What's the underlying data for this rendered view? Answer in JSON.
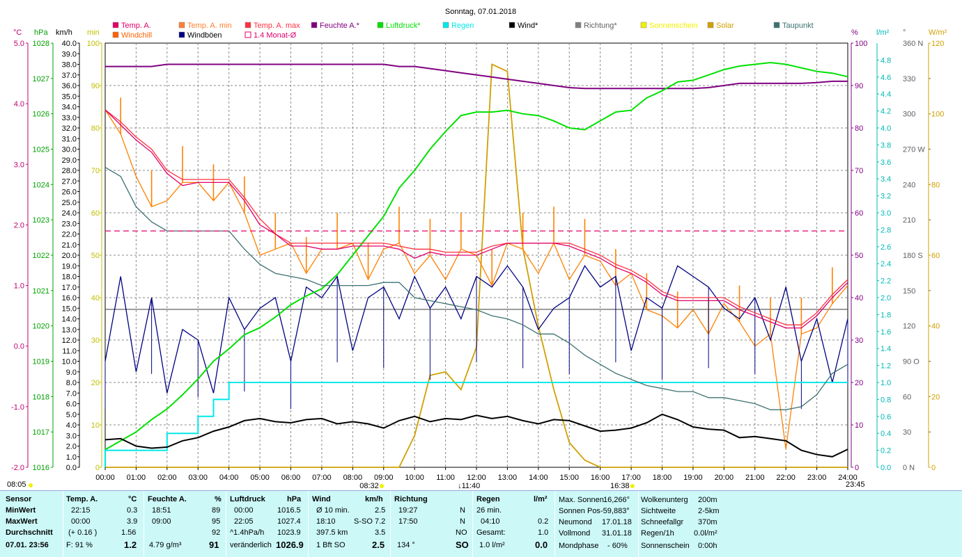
{
  "title": "Sonntag, 07.01.2018",
  "axis_units": {
    "temp": "°C",
    "hpa": "hPa",
    "kmh": "km/h",
    "min": "min",
    "pct": "%",
    "lqm": "l/m²",
    "deg": "°",
    "wqm": "W/m²"
  },
  "legend": [
    {
      "label": "Temp. A.",
      "color": "#e0006a",
      "kind": "box"
    },
    {
      "label": "Temp. A. min",
      "color": "#ff8030",
      "kind": "box"
    },
    {
      "label": "Temp. A. max",
      "color": "#ff3040",
      "kind": "box"
    },
    {
      "label": "Feuchte A.*",
      "color": "#800080",
      "kind": "box"
    },
    {
      "label": "Luftdruck*",
      "color": "#00e000",
      "kind": "box"
    },
    {
      "label": "Regen",
      "color": "#00e8e8",
      "kind": "box"
    },
    {
      "label": "Wind*",
      "color": "#000000",
      "kind": "box"
    },
    {
      "label": "Richtung*",
      "color": "#808080",
      "kind": "box"
    },
    {
      "label": "Sonnenschein",
      "color": "#f0f000",
      "kind": "box"
    },
    {
      "label": "Solar",
      "color": "#d0a000",
      "kind": "box"
    },
    {
      "label": "Taupunkt",
      "color": "#3c7070",
      "kind": "box"
    },
    {
      "label": "Windchill",
      "color": "#ff6000",
      "kind": "box"
    },
    {
      "label": "Windböen",
      "color": "#000080",
      "kind": "box"
    },
    {
      "label": "1.4 Monat-Ø",
      "color": "#e0006a",
      "kind": "open"
    }
  ],
  "chart_data": {
    "type": "line",
    "title": "Sonntag, 07.01.2018",
    "x_hours": [
      0,
      0.5,
      1,
      1.5,
      2,
      2.5,
      3,
      3.5,
      4,
      4.5,
      5,
      5.5,
      6,
      6.5,
      7,
      7.5,
      8,
      8.5,
      9,
      9.5,
      10,
      10.5,
      11,
      11.5,
      12,
      12.5,
      13,
      13.5,
      14,
      14.5,
      15,
      15.5,
      16,
      16.5,
      17,
      17.5,
      18,
      18.5,
      19,
      19.5,
      20,
      20.5,
      21,
      21.5,
      22,
      22.5,
      23,
      23.5,
      24
    ],
    "x_ticks": [
      "00:00",
      "01:00",
      "02:00",
      "03:00",
      "04:00",
      "05:00",
      "06:00",
      "07:00",
      "08:00",
      "09:00",
      "10:00",
      "11:00",
      "12:00",
      "13:00",
      "14:00",
      "15:00",
      "16:00",
      "17:00",
      "18:00",
      "19:00",
      "20:00",
      "21:00",
      "22:00",
      "23:00",
      "24:00"
    ],
    "axes": {
      "temp": {
        "ticks": [
          "5.0",
          "4.0",
          "3.0",
          "2.0",
          "1.0",
          "0.0",
          "-1.0",
          "-2.0"
        ],
        "range": [
          -2,
          5
        ]
      },
      "pressure": {
        "ticks": [
          "1028",
          "1027",
          "1026",
          "1025",
          "1024",
          "1023",
          "1022",
          "1021",
          "1020",
          "1019",
          "1018",
          "1017",
          "1016"
        ],
        "range": [
          1016,
          1028
        ]
      },
      "wind_kmh": {
        "ticks": [
          "40.0",
          "39.0",
          "38.0",
          "37.0",
          "36.0",
          "35.0",
          "34.0",
          "33.0",
          "32.0",
          "31.0",
          "30.0",
          "29.0",
          "28.0",
          "27.0",
          "26.0",
          "25.0",
          "24.0",
          "23.0",
          "22.0",
          "21.0",
          "20.0",
          "19.0",
          "18.0",
          "17.0",
          "16.0",
          "15.0",
          "14.0",
          "13.0",
          "12.0",
          "11.0",
          "10.0",
          "9.0",
          "8.0",
          "7.0",
          "6.0",
          "5.0",
          "4.0",
          "3.0",
          "2.0",
          "1.0",
          "0.0"
        ],
        "range": [
          0,
          40
        ]
      },
      "minutes": {
        "ticks": [
          "100",
          "90",
          "80",
          "70",
          "60",
          "50",
          "40",
          "30",
          "20",
          "10",
          "0"
        ],
        "range": [
          0,
          100
        ]
      },
      "humidity": {
        "ticks": [
          "100",
          "90",
          "80",
          "70",
          "60",
          "50",
          "40",
          "30",
          "20",
          "10",
          "0"
        ],
        "range": [
          0,
          100
        ]
      },
      "rain": {
        "ticks": [
          "4.8",
          "4.6",
          "4.4",
          "4.2",
          "4.0",
          "3.8",
          "3.6",
          "3.4",
          "3.2",
          "3.0",
          "2.8",
          "2.6",
          "2.4",
          "2.2",
          "2.0",
          "1.8",
          "1.6",
          "1.4",
          "1.2",
          "1.0",
          "0.8",
          "0.6",
          "0.4",
          "0.2",
          "0.0"
        ],
        "range": [
          0,
          5
        ]
      },
      "direction": {
        "ticks": [
          "360 N",
          "330",
          "300",
          "270 W",
          "240",
          "210",
          "180 S",
          "150",
          "120",
          "90 O",
          "60",
          "30",
          "0 N"
        ],
        "range": [
          0,
          360
        ]
      },
      "solar": {
        "ticks": [
          "120",
          "100",
          "80",
          "60",
          "40",
          "20",
          "0"
        ],
        "range": [
          0,
          120
        ]
      }
    },
    "series": [
      {
        "name": "Temp. A.",
        "axis": "temp",
        "values": [
          3.9,
          3.65,
          3.4,
          3.2,
          2.85,
          2.65,
          2.7,
          2.7,
          2.7,
          2.4,
          2.0,
          1.85,
          1.65,
          1.65,
          1.6,
          1.6,
          1.65,
          1.65,
          1.65,
          1.6,
          1.45,
          1.55,
          1.5,
          1.5,
          1.5,
          1.6,
          1.7,
          1.7,
          1.7,
          1.7,
          1.65,
          1.55,
          1.45,
          1.3,
          1.2,
          1.05,
          0.85,
          0.75,
          0.75,
          0.75,
          0.75,
          0.6,
          0.5,
          0.4,
          0.3,
          0.3,
          0.5,
          0.8,
          1.05
        ]
      },
      {
        "name": "Temp. A. max",
        "axis": "temp",
        "values": [
          3.9,
          3.7,
          3.45,
          3.25,
          2.9,
          2.75,
          2.75,
          2.75,
          2.75,
          2.45,
          2.1,
          1.85,
          1.7,
          1.7,
          1.7,
          1.7,
          1.7,
          1.7,
          1.7,
          1.65,
          1.6,
          1.6,
          1.55,
          1.55,
          1.55,
          1.65,
          1.7,
          1.7,
          1.7,
          1.7,
          1.7,
          1.6,
          1.5,
          1.35,
          1.25,
          1.1,
          0.9,
          0.8,
          0.8,
          0.8,
          0.8,
          0.65,
          0.55,
          0.45,
          0.35,
          0.35,
          0.55,
          0.85,
          1.1
        ]
      },
      {
        "name": "Taupunkt",
        "axis": "temp",
        "values": [
          2.95,
          2.8,
          2.3,
          2.05,
          1.9,
          1.9,
          1.9,
          1.9,
          1.9,
          1.6,
          1.35,
          1.2,
          1.15,
          1.1,
          1.0,
          1.0,
          1.0,
          1.0,
          1.05,
          1.05,
          0.8,
          0.75,
          0.7,
          0.65,
          0.6,
          0.5,
          0.45,
          0.35,
          0.2,
          0.2,
          0.05,
          -0.15,
          -0.3,
          -0.45,
          -0.55,
          -0.65,
          -0.7,
          -0.75,
          -0.75,
          -0.85,
          -0.85,
          -0.9,
          -0.95,
          -1.05,
          -1.05,
          -1.0,
          -0.8,
          -0.45,
          -0.3
        ]
      },
      {
        "name": "Luftdruck*",
        "axis": "pressure",
        "values": [
          1016.5,
          1016.75,
          1017.0,
          1017.35,
          1017.65,
          1018.05,
          1018.5,
          1019.0,
          1019.35,
          1019.75,
          1019.95,
          1020.25,
          1020.6,
          1020.85,
          1021.05,
          1021.45,
          1022.0,
          1022.55,
          1023.1,
          1023.9,
          1024.4,
          1025.0,
          1025.5,
          1025.95,
          1026.05,
          1026.05,
          1026.1,
          1026.0,
          1025.95,
          1025.8,
          1025.6,
          1025.55,
          1025.8,
          1026.05,
          1026.1,
          1026.45,
          1026.65,
          1026.9,
          1026.95,
          1027.1,
          1027.25,
          1027.35,
          1027.4,
          1027.45,
          1027.4,
          1027.3,
          1027.2,
          1027.15,
          1027.05
        ]
      },
      {
        "name": "Feuchte A.*",
        "axis": "humidity",
        "values": [
          94.5,
          94.5,
          94.5,
          94.5,
          95,
          95,
          95,
          95,
          95,
          95,
          95,
          95,
          95,
          95,
          95,
          95,
          95,
          95,
          95,
          94.5,
          94.5,
          94,
          93.5,
          93,
          92.5,
          92,
          91.5,
          91,
          90.5,
          90,
          89.5,
          89.3,
          89.3,
          89.3,
          89.3,
          89.3,
          89.3,
          89.3,
          89.3,
          89.5,
          90,
          90.5,
          90.5,
          90.5,
          90.5,
          90.5,
          90.7,
          91,
          91
        ]
      },
      {
        "name": "Regen",
        "axis": "rain",
        "values": [
          0,
          0.2,
          0.2,
          0.2,
          0.2,
          0.4,
          0.4,
          0.6,
          0.8,
          1.0,
          1.0,
          1.0,
          1.0,
          1.0,
          1.0,
          1.0,
          1.0,
          1.0,
          1.0,
          1.0,
          1.0,
          1.0,
          1.0,
          1.0,
          1.0,
          1.0,
          1.0,
          1.0,
          1.0,
          1.0,
          1.0,
          1.0,
          1.0,
          1.0,
          1.0,
          1.0,
          1.0,
          1.0,
          1.0,
          1.0,
          1.0,
          1.0,
          1.0,
          1.0,
          1.0,
          1.0,
          1.0,
          1.0,
          1.0
        ]
      },
      {
        "name": "Wind*",
        "axis": "wind_kmh",
        "values": [
          2.6,
          2.7,
          2.0,
          1.8,
          1.9,
          2.5,
          2.8,
          3.4,
          3.8,
          4.4,
          4.6,
          4.3,
          4.2,
          4.5,
          4.6,
          4.1,
          4.3,
          4.1,
          3.7,
          4.4,
          4.8,
          4.3,
          4.6,
          4.5,
          4.9,
          4.6,
          4.8,
          4.4,
          4.1,
          4.5,
          4.4,
          3.9,
          3.4,
          3.5,
          3.7,
          4.2,
          5.0,
          4.5,
          3.8,
          3.6,
          3.5,
          2.8,
          2.9,
          2.7,
          2.5,
          1.6,
          1.2,
          1.0,
          1.7
        ]
      },
      {
        "name": "Solar",
        "axis": "solar",
        "values": [
          0,
          0,
          0,
          0,
          0,
          0,
          0,
          0,
          0,
          0,
          0,
          0,
          0,
          0,
          0,
          0,
          0,
          0,
          0,
          0,
          9,
          26,
          27,
          22,
          34,
          114,
          112,
          62,
          40,
          22,
          7,
          2,
          0,
          0,
          0,
          0,
          0,
          0,
          0,
          0,
          0,
          0,
          0,
          0,
          0,
          0,
          0,
          0,
          0
        ]
      },
      {
        "name": "1.4 Monat-Ø",
        "axis": "temp",
        "values": [
          1.9,
          1.9,
          1.9,
          1.9,
          1.9,
          1.9,
          1.9,
          1.9,
          1.9,
          1.9,
          1.9,
          1.9,
          1.9,
          1.9,
          1.9,
          1.9,
          1.9,
          1.9,
          1.9,
          1.9,
          1.9,
          1.9,
          1.9,
          1.9,
          1.9,
          1.9,
          1.9,
          1.9,
          1.9,
          1.9,
          1.9,
          1.9,
          1.9,
          1.9,
          1.9,
          1.9,
          1.9,
          1.9,
          1.9,
          1.9,
          1.9,
          1.9,
          1.9,
          1.9,
          1.9,
          1.9,
          1.9,
          1.9,
          1.9
        ]
      },
      {
        "name": "Richtung*",
        "axis": "direction",
        "values": [
          134,
          134,
          134,
          134,
          134,
          134,
          134,
          134,
          134,
          134,
          134,
          134,
          134,
          134,
          134,
          134,
          134,
          134,
          134,
          134,
          134,
          134,
          134,
          134,
          134,
          134,
          134,
          134,
          134,
          134,
          134,
          134,
          134,
          134,
          134,
          134,
          134,
          134,
          134,
          134,
          134,
          134,
          134,
          134,
          134,
          134,
          134,
          134,
          134
        ]
      },
      {
        "name": "Windböen",
        "axis": "wind_kmh",
        "values": [
          10,
          18,
          9,
          16,
          7,
          13,
          12,
          7,
          16,
          13,
          15,
          16,
          10,
          17,
          16,
          18,
          11,
          16,
          17,
          14,
          18,
          15,
          17,
          14,
          18,
          17,
          19,
          17,
          13,
          15,
          16,
          19,
          17,
          18,
          11,
          16,
          15,
          19,
          18,
          17,
          15,
          14,
          16,
          12,
          17,
          10,
          14,
          8,
          14
        ]
      },
      {
        "name": "Windchill",
        "axis": "temp",
        "values": [
          3.9,
          3.5,
          2.8,
          2.3,
          2.4,
          2.7,
          2.7,
          2.4,
          2.7,
          2.2,
          1.5,
          1.6,
          1.7,
          1.2,
          1.6,
          1.6,
          1.7,
          1.1,
          1.6,
          1.7,
          1.2,
          1.5,
          1.1,
          1.6,
          1.5,
          1.0,
          1.7,
          1.6,
          1.2,
          1.7,
          1.1,
          1.5,
          1.4,
          1.0,
          1.2,
          0.6,
          0.5,
          0.3,
          0.6,
          0.2,
          0.7,
          0.4,
          0.0,
          0.2,
          -1.7,
          0.2,
          0.3,
          0.7,
          1.0
        ]
      }
    ]
  },
  "markers": {
    "sunrise": "08:32",
    "sunset": "16:38",
    "noon": "11:40",
    "left_time": "08:05",
    "right_time": "23:45"
  },
  "panel": {
    "row_labels": [
      "Sensor",
      "MinWert",
      "MaxWert",
      "Durchschnitt",
      "07.01. 23:56"
    ],
    "temp": {
      "header": "Temp. A.",
      "unit": "°C",
      "min_time": "22:15",
      "min_val": "0.3",
      "max_time": "00:00",
      "max_val": "3.9",
      "avg_trend": "(+ 0.16 )",
      "avg_val": "1.56",
      "cur_hum": "F: 91 %",
      "cur_val": "1.2"
    },
    "hum": {
      "header": "Feuchte A.",
      "unit": "%",
      "min_time": "18:51",
      "min_val": "89",
      "max_time": "09:00",
      "max_val": "95",
      "avg_val": "92",
      "abs": "4.79 g/m³",
      "cur_val": "91"
    },
    "press": {
      "header": "Luftdruck",
      "unit": "hPa",
      "min_time": "00:00",
      "min_val": "1016.5",
      "max_time": "22:05",
      "max_val": "1027.4",
      "avg_trend": "^1.4hPa/h",
      "avg_val": "1023.9",
      "cur_text": "veränderlich",
      "cur_val": "1026.9"
    },
    "wind": {
      "header": "Wind",
      "unit": "km/h",
      "r1_label": "Ø 10 min.",
      "r1_val": "2.5",
      "r2_time": "18:10",
      "r2_dir": "S-SO",
      "r2_val": "7.2",
      "r3_dist": "397.5 km",
      "r3_val": "3.5",
      "cur_bft": "1 Bft SO",
      "cur_val": "2.5"
    },
    "dir": {
      "header": "Richtung",
      "r1_time": "19:27",
      "r1_val": "N",
      "r2_time": "17:50",
      "r2_val": "N",
      "r3_val": "NO",
      "cur_deg": "134 °",
      "cur_val": "SO"
    },
    "rain": {
      "header": "Regen",
      "unit": "l/m²",
      "r1": "26 min.",
      "r2_time": "04:10",
      "r2_val": "0.2",
      "r3_label": "Gesamt:",
      "r3_val": "1.0",
      "cur_text": "1.0 l/m²",
      "cur_val": "0.0"
    },
    "sun": [
      {
        "k": "Max. Sonnen",
        "v": "16,266°"
      },
      {
        "k": "Sonnen Pos",
        "v": "-59,883°"
      },
      {
        "k": "Neumond",
        "v": "17.01.18"
      },
      {
        "k": "Vollmond",
        "v": "31.01.18"
      },
      {
        "k": "Mondphase",
        "v": "- 60%"
      }
    ],
    "misc": [
      {
        "k": "Wolkenunterg",
        "v": "200m"
      },
      {
        "k": "Sichtweite",
        "v": "2-5km"
      },
      {
        "k": "Schneefallgr",
        "v": "370m"
      },
      {
        "k": "Regen/1h",
        "v": "0.0l/m²"
      },
      {
        "k": "Sonnenschein",
        "v": "0:00h"
      }
    ]
  }
}
